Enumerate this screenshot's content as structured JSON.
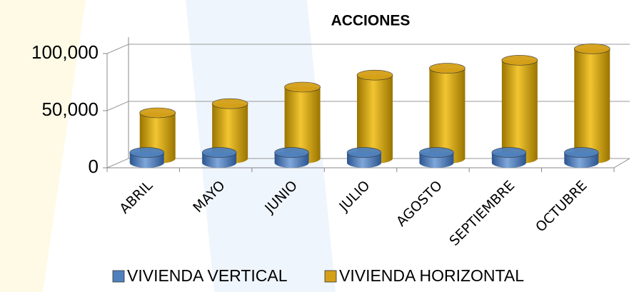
{
  "chart_data": {
    "type": "bar3d",
    "title": "ACCIONES",
    "categories": [
      "ABRIL",
      "MAYO",
      "JUNIO",
      "JULIO",
      "AGOSTO",
      "SEPTIEMBRE",
      "OCTUBRE"
    ],
    "series": [
      {
        "name": "VIVIENDA VERTICAL",
        "color": "#4f81bd",
        "values": [
          9000,
          9000,
          9000,
          9000,
          9000,
          9000,
          9000
        ]
      },
      {
        "name": "VIVIENDA HORIZONTAL",
        "color": "#d4a017",
        "values": [
          40000,
          48000,
          62500,
          73000,
          79000,
          86000,
          96000
        ]
      }
    ],
    "ylim": [
      0,
      100000
    ],
    "yticks": [
      0,
      {
        "value": 50000,
        "label": "50,000"
      },
      {
        "value": 100000,
        "label": "100,000"
      }
    ],
    "grid": true
  }
}
